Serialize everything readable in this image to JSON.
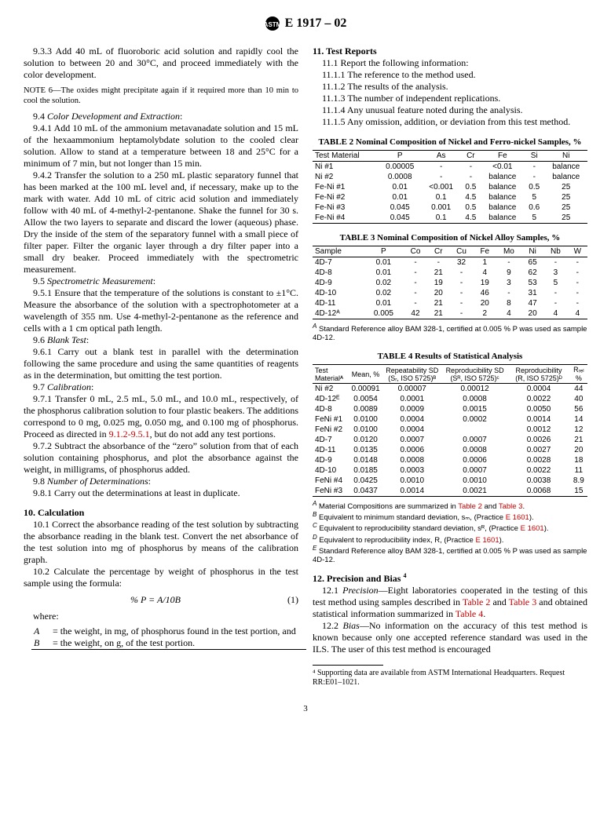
{
  "header": {
    "designation": "E 1917 – 02"
  },
  "left": {
    "p933": "9.3.3 Add 40 mL of fluoroboric acid solution and rapidly cool the solution to between 20 and 30°C, and proceed immediately with the color development.",
    "note6_label": "NOTE 6",
    "note6": "—The oxides might precipitate again if it required more than 10 min to cool the solution.",
    "s94_num": "9.4 ",
    "s94": "Color Development and Extraction",
    "p941": "9.4.1 Add 10 mL of the ammonium metavanadate solution and 15 mL of the hexaammonium heptamolybdate solution to the cooled clear solution. Allow to stand at a temperature between 18 and 25°C for a minimum of 7 min, but not longer than 15 min.",
    "p942": "9.4.2 Transfer the solution to a 250 mL plastic separatory funnel that has been marked at the 100 mL level and, if necessary, make up to the mark with water. Add 10 mL of citric acid solution and immediately follow with 40 mL of 4-methyl-2-pentanone. Shake the funnel for 30 s. Allow the two layers to separate and discard the lower (aqueous) phase. Dry the inside of the stem of the separatory funnel with a small piece of filter paper. Filter the organic layer through a dry filter paper into a small dry beaker. Proceed immediately with the spectrometric measurement.",
    "s95_num": "9.5 ",
    "s95": "Spectrometric Measurement",
    "p951": "9.5.1 Ensure that the temperature of the solutions is constant to ±1°C. Measure the absorbance of the solution with a spectrophotometer at a wavelength of 355 nm. Use 4-methyl-2-pentanone as the reference and cells with a 1 cm optical path length.",
    "s96_num": "9.6 ",
    "s96": "Blank Test",
    "p961": "9.6.1 Carry out a blank test in parallel with the determination following the same procedure and using the same quantities of reagents as in the determination, but omitting the test portion.",
    "s97_num": "9.7 ",
    "s97": "Calibration",
    "p971a": "9.7.1 Transfer 0 mL, 2.5 mL, 5.0 mL, and 10.0 mL, respectively, of the phosphorus calibration solution to four plastic beakers. The additions correspond to 0 mg, 0.025 mg, 0.050 mg, and 0.100 mg of phosphorus. Proceed as directed in ",
    "p971link": "9.1.2-9.5.1",
    "p971b": ", but do not add any test portions.",
    "p972": "9.7.2 Subtract the absorbance of the “zero” solution from that of each solution containing phosphorus, and plot the absorbance against the weight, in milligrams, of phosphorus added.",
    "s98_num": "9.8 ",
    "s98": "Number of Determinations",
    "p981": "9.8.1 Carry out the determinations at least in duplicate.",
    "h10": "10. Calculation",
    "p101": "10.1 Correct the absorbance reading of the test solution by subtracting the absorbance reading in the blank test. Convert the net absorbance of the test solution into mg of phosphorus by means of the calibration graph.",
    "p102": "10.2 Calculate the percentage by weight of phosphorus in the test sample using the formula:",
    "equation": "% P = A/10B",
    "eqnum": "(1)",
    "where": "where:",
    "whereA_sym": "A",
    "whereA": "= the weight, in mg, of phosphorus found in the test portion, and",
    "whereB_sym": "B",
    "whereB": "= the weight, on g, of the test portion."
  },
  "right": {
    "h11": "11. Test Reports",
    "p111": "11.1 Report the following information:",
    "p1111": "11.1.1 The reference to the method used.",
    "p1112": "11.1.2 The results of the analysis.",
    "p1113": "11.1.3 The number of independent replications.",
    "p1114": "11.1.4 Any unusual feature noted during the analysis.",
    "p1115": "11.1.5 Any omission, addition, or deviation from this test method.",
    "h12": "12. Precision and Bias ",
    "h12sup": "4",
    "p121a": "12.1 ",
    "p121i": "Precision",
    "p121b": "—Eight laboratories cooperated in the testing of this test method using samples described in ",
    "p121_t2": "Table 2",
    "p121c": " and ",
    "p121_t3": "Table 3",
    "p121d": " and obtained statistical information summarized in ",
    "p121_t4": "Table 4",
    "p121e": ".",
    "p122a": "12.2 ",
    "p122i": "Bias",
    "p122b": "—No information on the accuracy of this test method is known because only one accepted reference standard was used in the ILS. The user of this test method is encouraged",
    "fn4": "⁴ Supporting data are available from ASTM International Headquarters. Request RR:E01–1021."
  },
  "table2": {
    "title": "TABLE 2  Nominal Composition of Nickel and Ferro-nickel Samples, %",
    "headers": [
      "Test Material",
      "P",
      "As",
      "Cr",
      "Fe",
      "Si",
      "Ni"
    ],
    "rows": [
      [
        "Ni #1",
        "0.00005",
        "-",
        "-",
        "<0.01",
        "-",
        "balance"
      ],
      [
        "Ni #2",
        "0.0008",
        "-",
        "-",
        "balance",
        "-",
        "balance"
      ],
      [
        "Fe-Ni #1",
        "0.01",
        "<0.001",
        "0.5",
        "balance",
        "0.5",
        "25"
      ],
      [
        "Fe-Ni #2",
        "0.01",
        "0.1",
        "4.5",
        "balance",
        "5",
        "25"
      ],
      [
        "Fe-Ni #3",
        "0.045",
        "0.001",
        "0.5",
        "balance",
        "0.6",
        "25"
      ],
      [
        "Fe-Ni #4",
        "0.045",
        "0.1",
        "4.5",
        "balance",
        "5",
        "25"
      ]
    ]
  },
  "table3": {
    "title": "TABLE 3  Nominal Composition of Nickel Alloy Samples, %",
    "headers": [
      "Sample",
      "P",
      "Co",
      "Cr",
      "Cu",
      "Fe",
      "Mo",
      "Ni",
      "Nb",
      "W"
    ],
    "rows": [
      [
        "4D-7",
        "0.01",
        "-",
        "-",
        "32",
        "1",
        "-",
        "65",
        "-",
        "-"
      ],
      [
        "4D-8",
        "0.01",
        "-",
        "21",
        "-",
        "4",
        "9",
        "62",
        "3",
        "-"
      ],
      [
        "4D-9",
        "0.02",
        "-",
        "19",
        "-",
        "19",
        "3",
        "53",
        "5",
        "-"
      ],
      [
        "4D-10",
        "0.02",
        "-",
        "20",
        "-",
        "46",
        "-",
        "31",
        "-",
        "-"
      ],
      [
        "4D-11",
        "0.01",
        "-",
        "21",
        "-",
        "20",
        "8",
        "47",
        "-",
        "-"
      ],
      [
        "4D-12ᴬ",
        "0.005",
        "42",
        "21",
        "-",
        "2",
        "4",
        "20",
        "4",
        "4"
      ]
    ],
    "footnote_a_sup": "A",
    "footnote_a": " Standard Reference alloy BAM 328-1, certified at 0.005 % P was used as sample 4D-12."
  },
  "table4": {
    "title": "TABLE 4  Results of Statistical Analysis",
    "headers": [
      "Test Materialᴬ",
      "Mean, %",
      "Repeatability SD (Sᵣ, ISO 5725)ᴮ",
      "Reproducibility SD (Sᴿ, ISO 5725)ᶜ",
      "Reproducibility (R, ISO 5725)ᴰ",
      "Rᵣₑₗ %"
    ],
    "rows": [
      [
        "Ni #2",
        "0.00091",
        "0.00007",
        "0.00012",
        "0.0004",
        "44"
      ],
      [
        "4D-12ᴱ",
        "0.0054",
        "0.0001",
        "0.0008",
        "0.0022",
        "40"
      ],
      [
        "4D-8",
        "0.0089",
        "0.0009",
        "0.0015",
        "0.0050",
        "56"
      ],
      [
        "FeNi #1",
        "0.0100",
        "0.0004",
        "0.0002",
        "0.0014",
        "14"
      ],
      [
        "FeNi #2",
        "0.0100",
        "0.0004",
        "",
        "0.0012",
        "12"
      ],
      [
        "4D-7",
        "0.0120",
        "0.0007",
        "0.0007",
        "0.0026",
        "21"
      ],
      [
        "4D-11",
        "0.0135",
        "0.0006",
        "0.0008",
        "0.0027",
        "20"
      ],
      [
        "4D-9",
        "0.0148",
        "0.0008",
        "0.0006",
        "0.0028",
        "18"
      ],
      [
        "4D-10",
        "0.0185",
        "0.0003",
        "0.0007",
        "0.0022",
        "11"
      ],
      [
        "FeNi #4",
        "0.0425",
        "0.0010",
        "0.0010",
        "0.0038",
        "8.9"
      ],
      [
        "FeNi #3",
        "0.0437",
        "0.0014",
        "0.0021",
        "0.0068",
        "15"
      ]
    ],
    "fa_s": "A",
    "fa": " Material Compositions are summarized in ",
    "fa_t2": "Table 2",
    "fa_and": " and ",
    "fa_t3": "Table 3",
    "fa_end": ".",
    "fb_s": "B",
    "fb": " Equivalent to minimum standard deviation, sₘ, (Practice ",
    "fb_link": "E 1601",
    "fb_end": ").",
    "fc_s": "C",
    "fc": " Equivalent to reproducibility standard deviation, sᴿ, (Practice ",
    "fc_link": "E 1601",
    "fc_end": ").",
    "fd_s": "D",
    "fd": " Equivalent to reproducibility index, R, (Practice ",
    "fd_link": "E 1601",
    "fd_end": ").",
    "fe_s": "E",
    "fe": " Standard Reference alloy BAM 328-1, certified at 0.005 % P was used as sample 4D-12."
  },
  "page": "3"
}
